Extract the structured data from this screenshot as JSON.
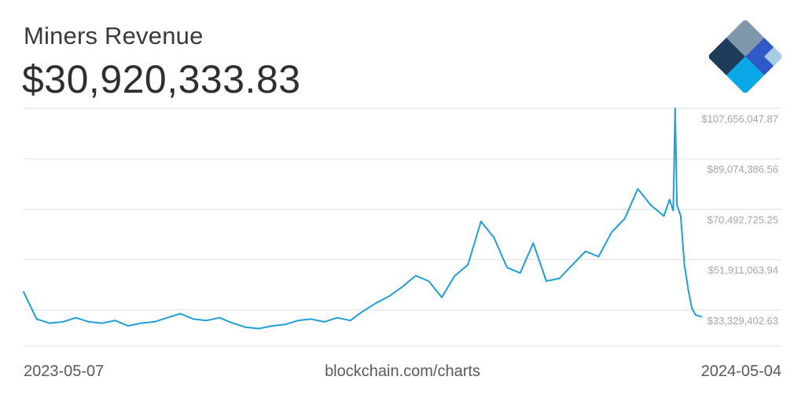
{
  "header": {
    "title": "Miners Revenue",
    "value": "$30,920,333.83"
  },
  "footer": {
    "start_date": "2023-05-07",
    "source": "blockchain.com/charts",
    "end_date": "2024-05-04"
  },
  "colors": {
    "line": "#1f9fd6",
    "grid": "#dedede",
    "tick_text": "#a6a6a6",
    "logo_dark": "#1f3b5c",
    "logo_blue": "#2f58c9",
    "logo_cyan": "#0aa7e8",
    "logo_gray": "#7f97ab",
    "logo_light": "#a7cbe3"
  },
  "chart_data": {
    "type": "line",
    "title": "Miners Revenue",
    "xlabel": "",
    "ylabel": "",
    "x": [
      "2023-05-07",
      "2023-05-14",
      "2023-05-21",
      "2023-05-28",
      "2023-06-04",
      "2023-06-11",
      "2023-06-18",
      "2023-06-25",
      "2023-07-02",
      "2023-07-09",
      "2023-07-16",
      "2023-07-23",
      "2023-07-30",
      "2023-08-06",
      "2023-08-13",
      "2023-08-20",
      "2023-08-27",
      "2023-09-03",
      "2023-09-10",
      "2023-09-17",
      "2023-09-24",
      "2023-10-01",
      "2023-10-08",
      "2023-10-15",
      "2023-10-22",
      "2023-10-29",
      "2023-11-05",
      "2023-11-12",
      "2023-11-19",
      "2023-11-26",
      "2023-12-03",
      "2023-12-10",
      "2023-12-17",
      "2023-12-24",
      "2023-12-31",
      "2024-01-07",
      "2024-01-14",
      "2024-01-21",
      "2024-01-28",
      "2024-02-04",
      "2024-02-11",
      "2024-02-18",
      "2024-02-25",
      "2024-03-03",
      "2024-03-10",
      "2024-03-17",
      "2024-03-24",
      "2024-03-31",
      "2024-04-07",
      "2024-04-14",
      "2024-04-17",
      "2024-04-19",
      "2024-04-20",
      "2024-04-21",
      "2024-04-23",
      "2024-04-25",
      "2024-04-27",
      "2024-04-29",
      "2024-05-01",
      "2024-05-04"
    ],
    "values": [
      40000000,
      30000000,
      28500000,
      29000000,
      30500000,
      29000000,
      28500000,
      29500000,
      27500000,
      28500000,
      29000000,
      30500000,
      32000000,
      30000000,
      29500000,
      30500000,
      28500000,
      27000000,
      26500000,
      27500000,
      28000000,
      29500000,
      30000000,
      29000000,
      30500000,
      29500000,
      33000000,
      36000000,
      38500000,
      42000000,
      46000000,
      44000000,
      38000000,
      46000000,
      50000000,
      66000000,
      60000000,
      49000000,
      47000000,
      58000000,
      44000000,
      45000000,
      50000000,
      55000000,
      53000000,
      62000000,
      67000000,
      78000000,
      72000000,
      68000000,
      74000000,
      70000000,
      107656047.87,
      72000000,
      68000000,
      50000000,
      41000000,
      34000000,
      31500000,
      30920333.83
    ],
    "ylim": [
      20000000,
      107656047.87
    ],
    "y_ticks": [
      33329402.63,
      51911063.94,
      70492725.25,
      89074386.56,
      107656047.87
    ],
    "y_tick_labels": [
      "$33,329,402.63",
      "$51,911,063.94",
      "$70,492,725.25",
      "$89,074,386.56",
      "$107,656,047.87"
    ],
    "x_tick_labels": [
      "2023-05-07",
      "2024-05-04"
    ],
    "grid": true,
    "legend": "none"
  }
}
